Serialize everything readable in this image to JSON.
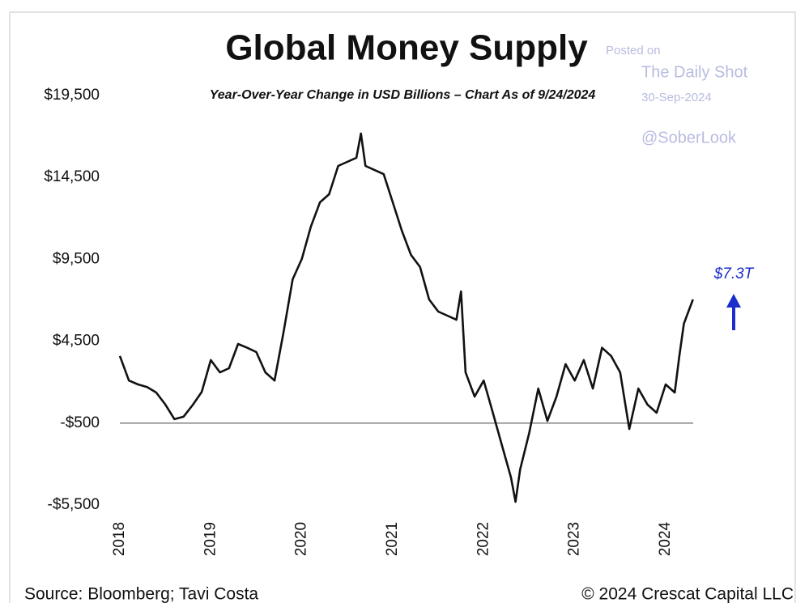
{
  "chart_data": {
    "type": "line",
    "title": "Global Money Supply",
    "subtitle": "Year-Over-Year Change in USD Billions – Chart As of 9/24/2024",
    "source": "Source: Bloomberg; Tavi Costa",
    "copyright": "© 2024 Crescat Capital LLC",
    "watermark": [
      "Posted on",
      "The Daily Shot",
      "30-Sep-2024",
      "@SoberLook"
    ],
    "annotations": [
      {
        "text": "$7.3T",
        "color": "#1a2ecc"
      }
    ],
    "xlim": [
      2018,
      2024
    ],
    "xticks": [
      2018,
      2019,
      2020,
      2021,
      2022,
      2023,
      2024
    ],
    "ylim": [
      -5500,
      19500
    ],
    "yticks": [
      {
        "value": -5500,
        "label": "-$5,500"
      },
      {
        "value": -500,
        "label": "-$500"
      },
      {
        "value": 4500,
        "label": "$4,500"
      },
      {
        "value": 9500,
        "label": "$9,500"
      },
      {
        "value": 14500,
        "label": "$14,500"
      },
      {
        "value": 19500,
        "label": "$19,500"
      }
    ],
    "hline": -500,
    "grid": false,
    "series": [
      {
        "color": "#111111",
        "x": [
          2018.0,
          2018.1,
          2018.2,
          2018.3,
          2018.4,
          2018.5,
          2018.6,
          2018.7,
          2018.8,
          2018.9,
          2019.0,
          2019.1,
          2019.2,
          2019.3,
          2019.4,
          2019.5,
          2019.6,
          2019.7,
          2019.8,
          2019.9,
          2020.0,
          2020.1,
          2020.2,
          2020.3,
          2020.4,
          2020.5,
          2020.6,
          2020.65,
          2020.7,
          2020.8,
          2020.9,
          2021.0,
          2021.1,
          2021.2,
          2021.3,
          2021.4,
          2021.5,
          2021.6,
          2021.7,
          2021.75,
          2021.8,
          2021.9,
          2022.0,
          2022.1,
          2022.2,
          2022.3,
          2022.35,
          2022.4,
          2022.5,
          2022.6,
          2022.7,
          2022.8,
          2022.9,
          2023.0,
          2023.1,
          2023.2,
          2023.3,
          2023.4,
          2023.5,
          2023.6,
          2023.7,
          2023.8,
          2023.9,
          2024.0,
          2024.1,
          2024.15,
          2024.2,
          2024.3
        ],
        "values": [
          3600,
          2100,
          1860,
          1700,
          1370,
          630,
          -260,
          -110,
          600,
          1400,
          3350,
          2600,
          2850,
          4330,
          4100,
          3840,
          2600,
          2100,
          5070,
          8280,
          9520,
          11500,
          12980,
          13470,
          15200,
          15450,
          15700,
          17180,
          15200,
          14950,
          14700,
          12980,
          11250,
          9770,
          9030,
          7050,
          6310,
          6060,
          5810,
          7540,
          2600,
          1120,
          2100,
          130,
          -1850,
          -3820,
          -5300,
          -3330,
          -1100,
          1610,
          -360,
          1120,
          3100,
          2100,
          3350,
          1610,
          4100,
          3600,
          2600,
          -860,
          1610,
          630,
          130,
          1860,
          1370,
          3600,
          5570,
          7050
        ]
      }
    ]
  }
}
